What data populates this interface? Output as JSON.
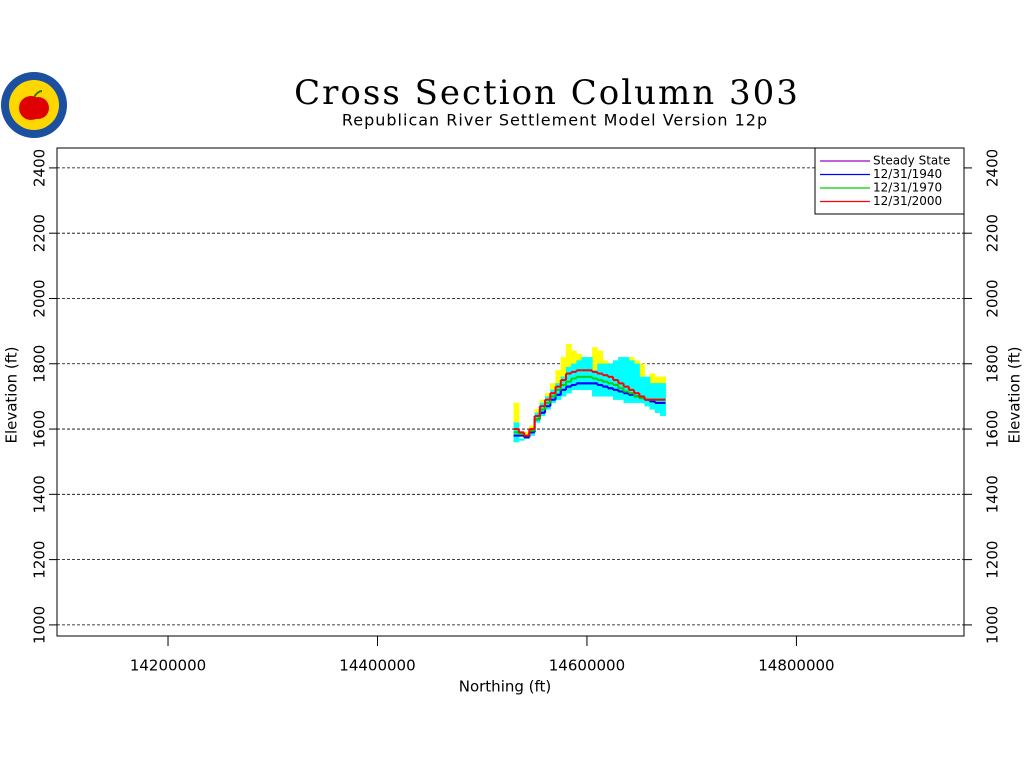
{
  "chart_data": {
    "type": "step",
    "title": "Cross Section Column 303",
    "subtitle": "Republican River Settlement Model Version 12p",
    "x_label": "Northing (ft)",
    "y_label": "Elevation (ft)",
    "y2_label": "Elevation (ft)",
    "xlim": [
      14094000,
      14960000
    ],
    "ylim": [
      966,
      2461
    ],
    "xticks": [
      14200000,
      14400000,
      14600000,
      14800000
    ],
    "yticks": [
      1000,
      1200,
      1400,
      1600,
      1800,
      2000,
      2200,
      2400
    ],
    "grid": true,
    "legend": "upper right",
    "x": [
      14530000,
      14535000,
      14540000,
      14545000,
      14550000,
      14555000,
      14560000,
      14565000,
      14570000,
      14575000,
      14580000,
      14585000,
      14590000,
      14595000,
      14600000,
      14605000,
      14610000,
      14615000,
      14620000,
      14625000,
      14630000,
      14635000,
      14640000,
      14645000,
      14650000,
      14655000,
      14660000,
      14665000,
      14670000
    ],
    "fills": [
      {
        "color": "#ffff00",
        "upper": [
          1680,
          1570,
          1590,
          1610,
          1660,
          1690,
          1710,
          1740,
          1780,
          1820,
          1860,
          1840,
          1830,
          1820,
          1820,
          1850,
          1840,
          1810,
          1800,
          1810,
          1820,
          1820,
          1820,
          1810,
          1800,
          1760,
          1770,
          1760,
          1760
        ],
        "lower": [
          1560,
          1565,
          1570,
          1580,
          1620,
          1640,
          1660,
          1680,
          1690,
          1700,
          1710,
          1720,
          1720,
          1720,
          1720,
          1700,
          1700,
          1700,
          1700,
          1690,
          1690,
          1680,
          1680,
          1680,
          1680,
          1670,
          1660,
          1650,
          1640
        ]
      },
      {
        "color": "#00ffff",
        "upper": [
          1620,
          1570,
          1580,
          1600,
          1650,
          1680,
          1700,
          1720,
          1740,
          1760,
          1790,
          1800,
          1810,
          1820,
          1820,
          1780,
          1800,
          1800,
          1800,
          1810,
          1820,
          1820,
          1810,
          1800,
          1760,
          1760,
          1740,
          1740,
          1740
        ],
        "lower": [
          1560,
          1565,
          1570,
          1580,
          1620,
          1640,
          1660,
          1680,
          1690,
          1700,
          1710,
          1720,
          1720,
          1720,
          1720,
          1700,
          1700,
          1700,
          1700,
          1690,
          1690,
          1680,
          1680,
          1680,
          1680,
          1670,
          1660,
          1650,
          1640
        ]
      }
    ],
    "series": [
      {
        "name": "Steady State",
        "color": "#a000c0",
        "values": [
          1580,
          1580,
          1575,
          1590,
          1630,
          1650,
          1670,
          1690,
          1705,
          1720,
          1730,
          1735,
          1740,
          1740,
          1740,
          1740,
          1735,
          1730,
          1725,
          1720,
          1715,
          1710,
          1705,
          1700,
          1695,
          1690,
          1685,
          1680,
          1680
        ]
      },
      {
        "name": "12/31/1940",
        "color": "#0000ff",
        "values": [
          1580,
          1580,
          1575,
          1590,
          1630,
          1650,
          1670,
          1690,
          1705,
          1720,
          1730,
          1735,
          1740,
          1740,
          1740,
          1740,
          1735,
          1730,
          1725,
          1720,
          1715,
          1710,
          1705,
          1700,
          1695,
          1690,
          1685,
          1680,
          1680
        ]
      },
      {
        "name": "12/31/1970",
        "color": "#00d000",
        "values": [
          1590,
          1585,
          1580,
          1595,
          1630,
          1660,
          1680,
          1700,
          1720,
          1735,
          1745,
          1755,
          1760,
          1760,
          1760,
          1755,
          1750,
          1745,
          1740,
          1735,
          1725,
          1715,
          1710,
          1700,
          1695,
          1690,
          1690,
          1690,
          1690
        ]
      },
      {
        "name": "12/31/2000",
        "color": "#ff0000",
        "values": [
          1600,
          1590,
          1580,
          1600,
          1640,
          1670,
          1690,
          1710,
          1730,
          1750,
          1770,
          1775,
          1780,
          1780,
          1780,
          1775,
          1770,
          1765,
          1760,
          1750,
          1740,
          1730,
          1720,
          1710,
          1700,
          1690,
          1690,
          1690,
          1690
        ]
      }
    ]
  }
}
